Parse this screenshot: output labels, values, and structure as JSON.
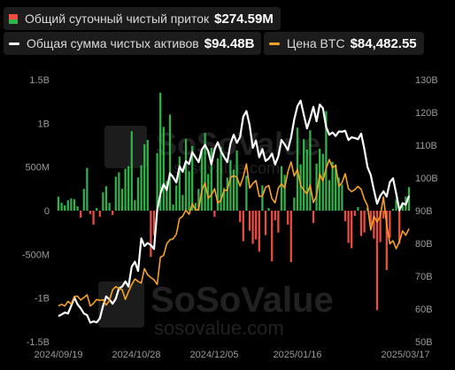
{
  "legend": {
    "inflow": {
      "label": "Общий суточный чистый приток",
      "value": "$274.59M"
    },
    "assets": {
      "label": "Общая сумма чистых активов",
      "value": "$94.48B"
    },
    "btc": {
      "label": "Цена BTC",
      "value": "$84,482.55"
    }
  },
  "watermark": {
    "brand": "SoSoValue",
    "url": "sosovalue.com"
  },
  "colors": {
    "positive_bar": "#2fb44a",
    "negative_bar": "#ef4d42",
    "assets_line": "#ffffff",
    "btc_line": "#f7a128",
    "background": "#000000"
  },
  "chart_data": {
    "type": "bar+line",
    "title": "",
    "x_tick_labels": [
      "2024/09/19",
      "2024/10/28",
      "2024/12/05",
      "2025/01/16",
      "2025/03/17"
    ],
    "left_axis": {
      "label": "",
      "ticks": [
        "1.5B",
        "1B",
        "500M",
        "0",
        "-500M",
        "-1B",
        "-1.5B"
      ],
      "range": [
        -1.5,
        1.5
      ],
      "unit": "B USD"
    },
    "right_axis": {
      "label": "",
      "ticks": [
        "130B",
        "120B",
        "110B",
        "100B",
        "90B",
        "80B",
        "70B",
        "60B",
        "50B"
      ],
      "range": [
        50,
        130
      ],
      "unit": "B USD"
    },
    "grid": false,
    "daily_net_inflow_B": [
      0.16,
      0.09,
      0.06,
      0.12,
      0.14,
      0.13,
      0.05,
      -0.08,
      0.25,
      0.49,
      -0.04,
      -0.16,
      0.03,
      -0.07,
      0.21,
      0.28,
      0.09,
      -0.05,
      0.39,
      0.44,
      0.25,
      0.48,
      0.51,
      0.91,
      0.12,
      0.38,
      0.52,
      0.76,
      0.81,
      -0.53,
      -0.28,
      0.66,
      1.35,
      0.96,
      0.34,
      1.1,
      0.07,
      0.29,
      0.62,
      0.18,
      0.82,
      0.45,
      0.74,
      0.09,
      0.25,
      0.68,
      0.89,
      0.42,
      0.72,
      -0.07,
      0.6,
      0.73,
      0.26,
      0.38,
      0.58,
      0.47,
      0.69,
      -0.13,
      -0.35,
      0.4,
      -0.23,
      -0.38,
      -0.33,
      -0.47,
      0.29,
      -0.28,
      0.03,
      -0.58,
      -0.11,
      -0.25,
      0.51,
      0.41,
      -0.16,
      -0.59,
      0.15,
      0.95,
      0.53,
      0.82,
      0.7,
      0.92,
      -0.14,
      0.54,
      0.71,
      0.65,
      1.14,
      0.35,
      0.56,
      0.53,
      0.38,
      0.3,
      -0.12,
      -0.37,
      -0.43,
      -0.06,
      0.04,
      -0.29,
      -0.25,
      0.03,
      -0.16,
      -0.32,
      -1.14,
      -0.36,
      -0.09,
      -0.68,
      -0.31,
      0.02,
      0.13,
      -0.38,
      0.09,
      0.16,
      0.27
    ],
    "total_net_assets_B": [
      57.8,
      58.3,
      58.9,
      58.6,
      60.9,
      63.5,
      61.4,
      60.2,
      58.6,
      58.1,
      55.8,
      56.2,
      55.9,
      57.1,
      60.9,
      63.8,
      62.9,
      61.6,
      63.1,
      66.3,
      66.8,
      68.4,
      66.8,
      72.9,
      74.4,
      71.6,
      81.5,
      79.2,
      80.1,
      79.5,
      78.3,
      90.2,
      95.1,
      98.1,
      96.3,
      101.4,
      100.2,
      98.6,
      103.5,
      101.9,
      105.1,
      104.2,
      107.9,
      106.3,
      104.8,
      108.6,
      110.1,
      108.2,
      104.1,
      108.7,
      110.9,
      108.2,
      106.4,
      104.8,
      110.5,
      113.2,
      110.7,
      112.5,
      118.7,
      120.4,
      116.1,
      109.2,
      111.4,
      106.3,
      108.8,
      105.2,
      105.9,
      107.4,
      104.1,
      106.6,
      111.6,
      110.2,
      108.5,
      112.3,
      117.9,
      121.9,
      123.6,
      119.3,
      115.1,
      118.2,
      121.7,
      117.3,
      122.4,
      121.3,
      115.6,
      113.2,
      113.9,
      112.8,
      114.2,
      114.1,
      114.4,
      111.6,
      112.4,
      112.2,
      111.8,
      113.5,
      108.8,
      103.3,
      100.9,
      96.3,
      92.1,
      94.5,
      95.9,
      94.3,
      98.7,
      99.9,
      95.2,
      90.1,
      92.3,
      91.8,
      94.5
    ],
    "btc_price_K": [
      60.9,
      61.4,
      60.9,
      62.3,
      61.5,
      63.8,
      63.9,
      62.7,
      63.5,
      64.3,
      60.9,
      61.7,
      62.9,
      62.6,
      62.8,
      61.2,
      62.6,
      65.8,
      66.8,
      66.2,
      65.9,
      62.9,
      65.3,
      67.4,
      69.1,
      68.4,
      67.9,
      72.3,
      70.4,
      69.6,
      68.9,
      67.5,
      75.8,
      76.3,
      79.9,
      81.1,
      81.4,
      82.8,
      87.6,
      88.3,
      90.2,
      88.9,
      92.1,
      90.3,
      90.3,
      96.2,
      98.5,
      93.8,
      94.8,
      96.7,
      92.3,
      93.2,
      96.3,
      96.2,
      100.1,
      100.7,
      100.2,
      97.5,
      100.3,
      104.3,
      96.9,
      98.3,
      99.2,
      94.4,
      94.4,
      97.1,
      97.7,
      93.7,
      92.4,
      96.9,
      98.2,
      96.9,
      101.8,
      104.9,
      100.6,
      102.6,
      97.7,
      96.3,
      95.1,
      97.8,
      92.5,
      94.5,
      101.2,
      99.1,
      102.9,
      105.6,
      103.1,
      103.8,
      97.4,
      98.6,
      101.3,
      96.7,
      95.8,
      96.4,
      97.4,
      96.5,
      93.5,
      91.5,
      84.1,
      88.3,
      86.5,
      88.3,
      94.2,
      85.8,
      79.9,
      80.8,
      78.4,
      80.6,
      83.8,
      82.5,
      84.5
    ]
  }
}
